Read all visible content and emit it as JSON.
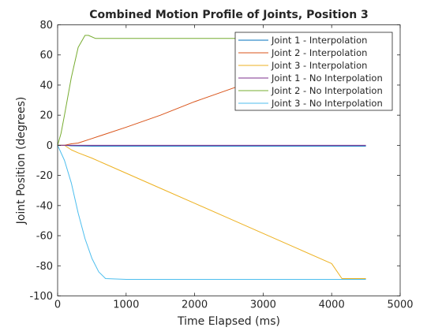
{
  "chart_data": {
    "type": "line",
    "title": "Combined Motion Profile of Joints, Position 3",
    "xlabel": "Time Elapsed (ms)",
    "ylabel": "Joint Position (degrees)",
    "xlim": [
      0,
      5000
    ],
    "ylim": [
      -100,
      80
    ],
    "xticks": [
      0,
      1000,
      2000,
      3000,
      4000,
      5000
    ],
    "yticks": [
      -100,
      -80,
      -60,
      -40,
      -20,
      0,
      20,
      40,
      60,
      80
    ],
    "grid": false,
    "legend_position": "top-right",
    "series": [
      {
        "name": "Joint 1 - Interpolation",
        "color": "#0072BD",
        "x": [
          0,
          100,
          200,
          500,
          1000,
          2000,
          3000,
          4000,
          4500
        ],
        "y": [
          0,
          0,
          -0.3,
          -0.5,
          -0.5,
          -0.5,
          -0.5,
          -0.5,
          -0.5
        ]
      },
      {
        "name": "Joint 2 - Interpolation",
        "color": "#D95319",
        "x": [
          0,
          100,
          200,
          300,
          500,
          1000,
          1500,
          2000,
          2500,
          3000,
          3500,
          4000,
          4500
        ],
        "y": [
          0,
          0,
          1,
          1.5,
          4.5,
          12,
          20,
          29,
          37,
          45,
          53,
          61,
          68
        ]
      },
      {
        "name": "Joint 3 - Interpolation",
        "color": "#EDB120",
        "x": [
          0,
          100,
          200,
          300,
          500,
          1000,
          1500,
          2000,
          2500,
          3000,
          3500,
          4000,
          4150,
          4500
        ],
        "y": [
          0,
          0,
          -3,
          -5,
          -8.5,
          -18.5,
          -28.5,
          -38.5,
          -48.5,
          -58.5,
          -68.5,
          -78.5,
          -88.5,
          -88.5
        ]
      },
      {
        "name": "Joint 1 - No Interpolation",
        "color": "#7E2F8E",
        "x": [
          0,
          100,
          200,
          500,
          1000,
          2000,
          3000,
          4000,
          4500
        ],
        "y": [
          0,
          0,
          0,
          0,
          0,
          0,
          0,
          0,
          0
        ]
      },
      {
        "name": "Joint 2 - No Interpolation",
        "color": "#77AC30",
        "x": [
          0,
          50,
          100,
          200,
          300,
          400,
          450,
          550,
          1000,
          2000,
          3000,
          4000,
          4500
        ],
        "y": [
          0,
          8,
          20,
          45,
          65,
          73,
          73,
          71,
          71,
          71,
          71,
          71,
          71
        ]
      },
      {
        "name": "Joint 3 - No Interpolation",
        "color": "#4DBEEE",
        "x": [
          0,
          100,
          200,
          300,
          400,
          500,
          600,
          700,
          1000,
          2000,
          3000,
          4000,
          4500
        ],
        "y": [
          0,
          -10,
          -25,
          -45,
          -62,
          -75,
          -84,
          -88.5,
          -89,
          -89,
          -89,
          -89,
          -89
        ]
      }
    ]
  }
}
